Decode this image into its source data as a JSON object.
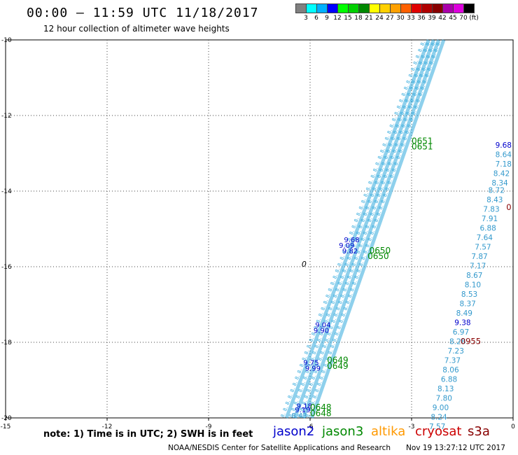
{
  "header": {
    "title": "00:00 – 11:59 UTC 11/18/2017",
    "subtitle": "12 hour collection of altimeter wave heights"
  },
  "colorbar": {
    "colors": [
      "#808080",
      "#00ffff",
      "#00b0ff",
      "#0000ff",
      "#00ff00",
      "#00d000",
      "#008800",
      "#ffff00",
      "#ffd000",
      "#ffa000",
      "#ff6000",
      "#e00000",
      "#b00000",
      "#880000",
      "#aa00aa",
      "#dd00dd",
      "#000000"
    ],
    "labels": [
      "3",
      "6",
      "9",
      "12",
      "15",
      "18",
      "21",
      "24",
      "27",
      "30",
      "33",
      "36",
      "39",
      "42",
      "45",
      "70",
      "(ft)"
    ]
  },
  "axes": {
    "x_ticks": [
      "-15",
      "-12",
      "-9",
      "-6",
      "-3",
      "0"
    ],
    "y_ticks": [
      "-10",
      "-12",
      "-14",
      "-16",
      "-18",
      "-20"
    ],
    "lon_range": [
      -15,
      0
    ],
    "lat_range": [
      -20,
      -10
    ],
    "grid": "dotted"
  },
  "map": {
    "diagonal_swaths_lat_lon": [
      [
        [
          -20,
          -6.7
        ],
        [
          -10,
          -2.5
        ]
      ],
      [
        [
          -20,
          -6.45
        ],
        [
          -10,
          -2.35
        ]
      ],
      [
        [
          -20,
          -6.2
        ],
        [
          -10,
          -2.2
        ]
      ],
      [
        [
          -20,
          -5.95
        ],
        [
          -10,
          -2.05
        ]
      ]
    ],
    "swath_labels": [
      {
        "text": "9.18",
        "lat": -19.75,
        "lon": -6.4,
        "color": "#0000cc"
      },
      {
        "text": "9.19",
        "lat": -19.85,
        "lon": -6.45,
        "color": "#0000cc"
      },
      {
        "text": "9.99",
        "lat": -18.75,
        "lon": -6.15,
        "color": "#0000cc"
      },
      {
        "text": "9.75",
        "lat": -18.6,
        "lon": -6.2,
        "color": "#0000cc"
      },
      {
        "text": "9.04",
        "lat": -17.6,
        "lon": -5.85,
        "color": "#0000cc"
      },
      {
        "text": "9.90",
        "lat": -17.75,
        "lon": -5.9,
        "color": "#0000cc"
      },
      {
        "text": "9.68",
        "lat": -15.35,
        "lon": -5.0,
        "color": "#0000cc"
      },
      {
        "text": "9.09",
        "lat": -15.5,
        "lon": -5.15,
        "color": "#0000cc"
      },
      {
        "text": "9.82",
        "lat": -15.65,
        "lon": -5.05,
        "color": "#0000cc"
      },
      {
        "text": "8.43",
        "lat": -20.0,
        "lon": -6.55,
        "color": "#3399cc"
      }
    ],
    "jason3_times": [
      {
        "text": "0651",
        "lat": -12.75,
        "lon": -3.0
      },
      {
        "text": "0651",
        "lat": -12.9,
        "lon": -3.0
      },
      {
        "text": "0650",
        "lat": -15.65,
        "lon": -4.25
      },
      {
        "text": "0650",
        "lat": -15.8,
        "lon": -4.3
      },
      {
        "text": "0649",
        "lat": -18.55,
        "lon": -5.5
      },
      {
        "text": "0649",
        "lat": -18.7,
        "lon": -5.5
      },
      {
        "text": "0648",
        "lat": -19.8,
        "lon": -6.0
      },
      {
        "text": "0648",
        "lat": -19.95,
        "lon": -6.0
      }
    ],
    "orbit_marker": {
      "text": "0",
      "lat": -16.0,
      "lon": -6.25
    },
    "right_track_values": [
      {
        "text": "9.68",
        "lat": -12.85,
        "lon": 0.1,
        "color": "#0000cc"
      },
      {
        "text": "8.64",
        "lat": -13.1,
        "lon": 0.05,
        "color": "#3399cc"
      },
      {
        "text": "7.18",
        "lat": -13.35,
        "lon": -0.0,
        "color": "#3399cc"
      },
      {
        "text": "8.42",
        "lat": -13.6,
        "lon": -0.1,
        "color": "#3399cc"
      },
      {
        "text": "8.34",
        "lat": -13.85,
        "lon": -0.15,
        "color": "#3399cc"
      },
      {
        "text": "8.72",
        "lat": -14.05,
        "lon": -0.25,
        "color": "#3399cc"
      },
      {
        "text": "8.43",
        "lat": -14.3,
        "lon": -0.3,
        "color": "#3399cc"
      },
      {
        "text": "7.83",
        "lat": -14.55,
        "lon": -0.4,
        "color": "#3399cc"
      },
      {
        "text": "7.91",
        "lat": -14.8,
        "lon": -0.45,
        "color": "#3399cc"
      },
      {
        "text": "6.88",
        "lat": -15.05,
        "lon": -0.5,
        "color": "#3399cc"
      },
      {
        "text": "7.64",
        "lat": -15.3,
        "lon": -0.6,
        "color": "#3399cc"
      },
      {
        "text": "7.57",
        "lat": -15.55,
        "lon": -0.65,
        "color": "#3399cc"
      },
      {
        "text": "7.87",
        "lat": -15.8,
        "lon": -0.75,
        "color": "#3399cc"
      },
      {
        "text": "7.17",
        "lat": -16.05,
        "lon": -0.8,
        "color": "#3399cc"
      },
      {
        "text": "8.67",
        "lat": -16.3,
        "lon": -0.9,
        "color": "#3399cc"
      },
      {
        "text": "8.10",
        "lat": -16.55,
        "lon": -0.95,
        "color": "#3399cc"
      },
      {
        "text": "8.53",
        "lat": -16.8,
        "lon": -1.05,
        "color": "#3399cc"
      },
      {
        "text": "8.37",
        "lat": -17.05,
        "lon": -1.1,
        "color": "#3399cc"
      },
      {
        "text": "8.49",
        "lat": -17.3,
        "lon": -1.2,
        "color": "#3399cc"
      },
      {
        "text": "9.38",
        "lat": -17.55,
        "lon": -1.25,
        "color": "#0000cc"
      },
      {
        "text": "6.97",
        "lat": -17.8,
        "lon": -1.3,
        "color": "#3399cc"
      },
      {
        "text": "8.28",
        "lat": -18.05,
        "lon": -1.4,
        "color": "#3399cc"
      },
      {
        "text": "7.23",
        "lat": -18.3,
        "lon": -1.45,
        "color": "#3399cc"
      },
      {
        "text": "7.37",
        "lat": -18.55,
        "lon": -1.55,
        "color": "#3399cc"
      },
      {
        "text": "8.06",
        "lat": -18.8,
        "lon": -1.6,
        "color": "#3399cc"
      },
      {
        "text": "6.88",
        "lat": -19.05,
        "lon": -1.65,
        "color": "#3399cc"
      },
      {
        "text": "8.13",
        "lat": -19.3,
        "lon": -1.75,
        "color": "#3399cc"
      },
      {
        "text": "7.80",
        "lat": -19.55,
        "lon": -1.8,
        "color": "#3399cc"
      },
      {
        "text": "9.00",
        "lat": -19.8,
        "lon": -1.9,
        "color": "#3399cc"
      },
      {
        "text": "8.24",
        "lat": -20.05,
        "lon": -1.95,
        "color": "#3399cc"
      },
      {
        "text": "7.57",
        "lat": -20.3,
        "lon": -2.0,
        "color": "#3399cc"
      }
    ],
    "cryosat_labels": [
      {
        "text": "0955",
        "lat": -18.05,
        "lon": -0.95
      },
      {
        "text": "0",
        "lat": -14.5,
        "lon": -0.05
      }
    ]
  },
  "footer": {
    "note": "note: 1) Time is in UTC; 2) SWH is in feet",
    "legend": [
      {
        "name": "jason2",
        "color": "#0000cc"
      },
      {
        "name": "jason3",
        "color": "#008800"
      },
      {
        "name": "altika",
        "color": "#ff9900"
      },
      {
        "name": "cryosat",
        "color": "#cc0000"
      },
      {
        "name": "s3a",
        "color": "#880000"
      }
    ],
    "credit": "NOAA/NESDIS Center for Satellite Applications and Research",
    "timestamp": "Nov 19 13:27:12 UTC 2017"
  }
}
